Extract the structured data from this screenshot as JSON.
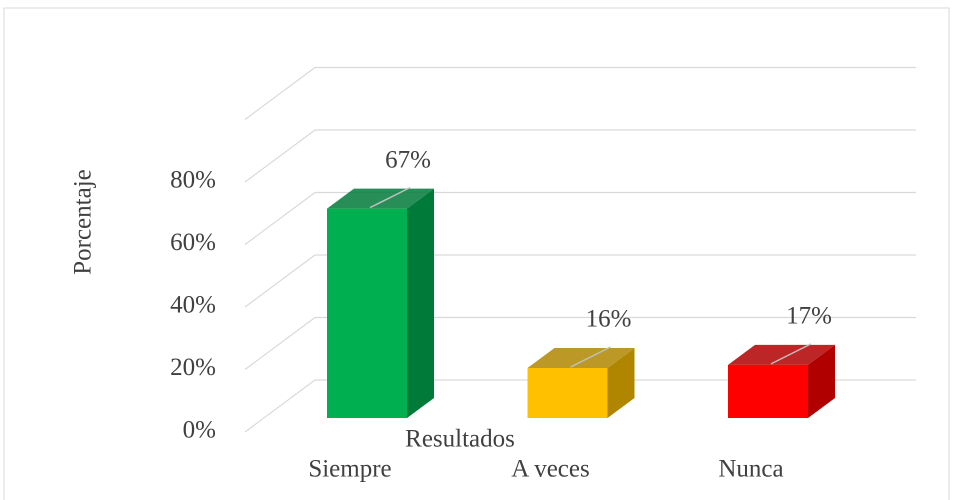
{
  "chart_data": {
    "type": "bar3d",
    "y_axis_label": "Porcentaje",
    "x_axis_label": "Resultados",
    "categories": [
      "Siempre",
      "A veces",
      "Nunca"
    ],
    "values": [
      67,
      16,
      17
    ],
    "value_labels": [
      "67%",
      "16%",
      "17%"
    ],
    "colors": [
      "#00b050",
      "#ffc000",
      "#ff0000"
    ],
    "side_colors": [
      "#007a38",
      "#b08600",
      "#b00000"
    ],
    "ylim": [
      0,
      100
    ],
    "yticks": [
      {
        "value": 0,
        "label": "0%"
      },
      {
        "value": 20,
        "label": "20%"
      },
      {
        "value": 40,
        "label": "40%"
      },
      {
        "value": 60,
        "label": "60%"
      },
      {
        "value": 80,
        "label": "80%"
      }
    ],
    "grid": true
  }
}
